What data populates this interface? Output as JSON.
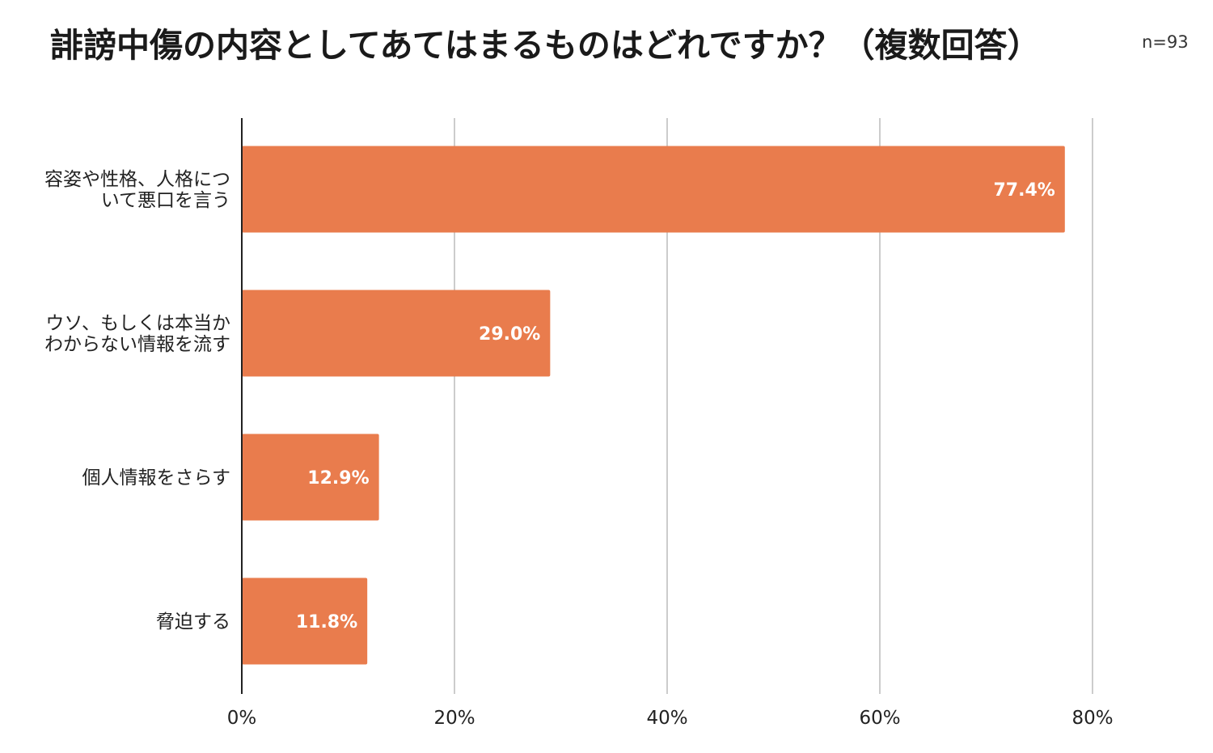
{
  "title": "誹謗中傷の内容としてあてはまるものはどれですか？（複数回答）",
  "sample_note": "n=93",
  "colors": {
    "bar": "#e97c4d",
    "grid": "#cccccc",
    "axis": "#222222"
  },
  "chart_data": {
    "type": "bar",
    "orientation": "horizontal",
    "title": "誹謗中傷の内容としてあてはまるものはどれですか？（複数回答）",
    "categories": [
      [
        "容姿や性格、人格につ",
        "いて悪口を言う"
      ],
      [
        "ウソ、もしくは本当か",
        "わからない情報を流す"
      ],
      [
        "個人情報をさらす"
      ],
      [
        "脅迫する"
      ]
    ],
    "values": [
      77.4,
      29.0,
      12.9,
      11.8
    ],
    "value_labels": [
      "77.4%",
      "29.0%",
      "12.9%",
      "11.8%"
    ],
    "xlim": [
      0,
      80
    ],
    "xticks": [
      0,
      20,
      40,
      60,
      80
    ],
    "xtick_labels": [
      "0%",
      "20%",
      "40%",
      "60%",
      "80%"
    ],
    "grid": true,
    "legend": "none"
  }
}
